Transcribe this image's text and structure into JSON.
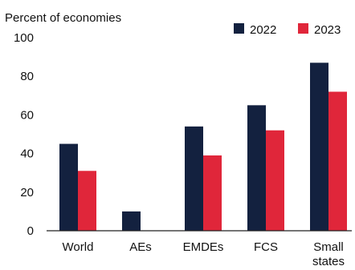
{
  "chart_data": {
    "type": "bar",
    "ylabel": "Percent of economies",
    "categories": [
      [
        "World"
      ],
      [
        "AEs"
      ],
      [
        "EMDEs"
      ],
      [
        "FCS"
      ],
      [
        "Small",
        "states"
      ]
    ],
    "series": [
      {
        "name": "2022",
        "color": "#13213f",
        "values": [
          45,
          10,
          54,
          65,
          87
        ]
      },
      {
        "name": "2023",
        "color": "#e0263a",
        "values": [
          31,
          0,
          39,
          52,
          72
        ]
      }
    ],
    "ylim": [
      0,
      100
    ],
    "yticks": [
      0,
      20,
      40,
      60,
      80,
      100
    ],
    "grid": false,
    "legend_position": "top-right"
  }
}
